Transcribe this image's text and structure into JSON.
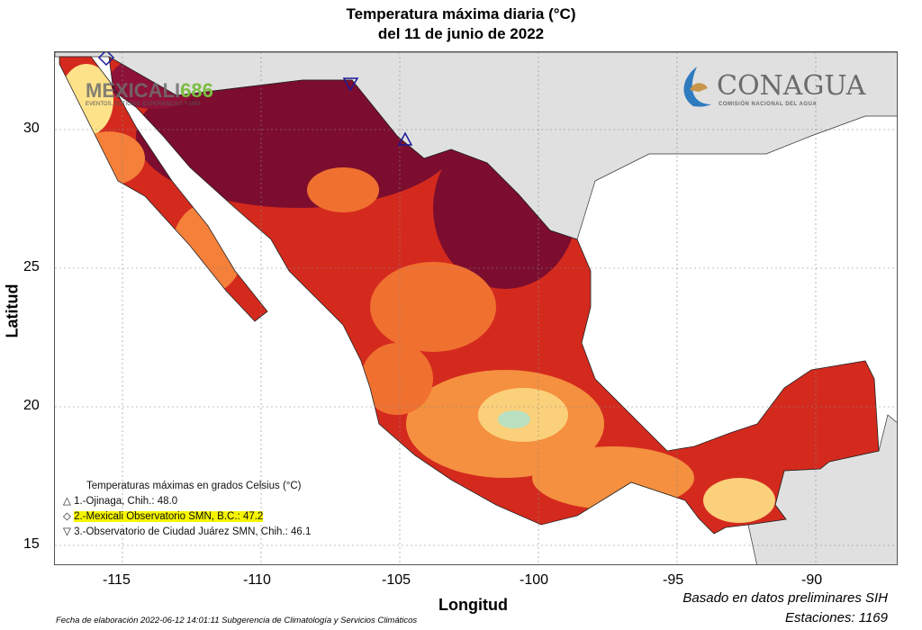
{
  "title": {
    "line1": "Temperatura máxima diaria (°C)",
    "line2": "del 11 de junio de 2022"
  },
  "axes": {
    "xlabel": "Longitud",
    "ylabel": "Latitud",
    "xticks": [
      "-115",
      "-110",
      "-105",
      "-100",
      "-95",
      "-90"
    ],
    "yticks": [
      "30",
      "25",
      "20",
      "15"
    ]
  },
  "legend": {
    "title": "Temperaturas máximas en grados Celsius (°C)",
    "items": [
      {
        "symbol": "△",
        "text": "1.-Ojinaga, Chih.: 48.0"
      },
      {
        "symbol": "◇",
        "text": "2.-Mexicali Observatorio SMN, B.C.: 47.2"
      },
      {
        "symbol": "▽",
        "text": "3.-Observatorio de Ciudad Juárez SMN, Chih.: 46.1"
      }
    ]
  },
  "logos": {
    "conagua": "CONAGUA",
    "conagua_sub": "COMISIÓN NACIONAL DEL AGUA",
    "watermark": "MEXICALI",
    "watermark_num": "686",
    "watermark_sub": "EVENTOS, NOTICIAS, EXPERIENCIAS Y MÁS"
  },
  "footer": {
    "left": "Fecha de elaboración 2022-06-12 14:01:11 Subgerencia de Climatología y Servicios Climáticos",
    "source": "Basado en datos preliminares SIH",
    "stations": "Estaciones:  1169"
  },
  "colors": {
    "land_other": "#e0e0e0",
    "hot": "#8b0a2a",
    "warm": "#d9261c",
    "mild": "#f4803a",
    "cool": "#fde28a"
  }
}
